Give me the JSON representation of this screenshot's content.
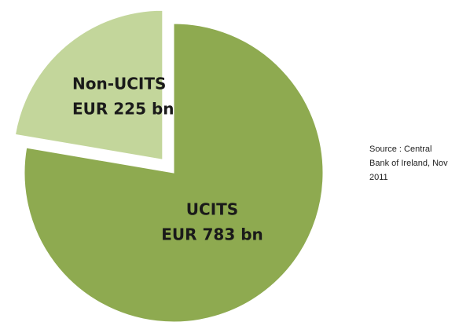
{
  "chart_data": {
    "type": "pie",
    "categories": [
      "UCITS",
      "Non-UCITS"
    ],
    "values": [
      783,
      225
    ],
    "value_labels": [
      "EUR 783 bn",
      "EUR 225 bn"
    ],
    "colors": [
      "#8eaa50",
      "#c3d69b"
    ],
    "exploded": [
      false,
      true
    ],
    "annotation": "Source : Central Bank of Ireland, Nov 2011"
  }
}
